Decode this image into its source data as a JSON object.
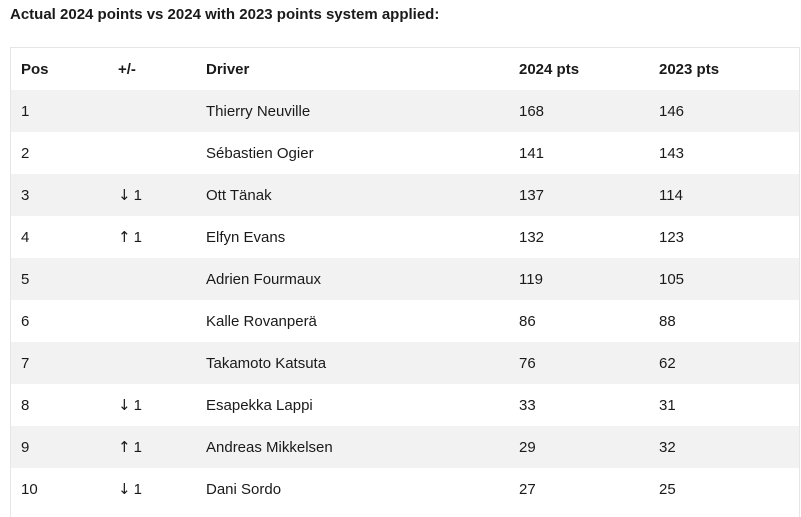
{
  "title": "Actual 2024 points vs 2024 with 2023 points system applied:",
  "table": {
    "headers": {
      "pos": "Pos",
      "change": "+/-",
      "driver": "Driver",
      "pts2024": "2024 pts",
      "pts2023": "2023 pts"
    },
    "rows": [
      {
        "pos": "1",
        "arrow": "",
        "change": "",
        "driver": "Thierry Neuville",
        "pts2024": "168",
        "pts2023": "146"
      },
      {
        "pos": "2",
        "arrow": "",
        "change": "",
        "driver": "Sébastien Ogier",
        "pts2024": "141",
        "pts2023": "143"
      },
      {
        "pos": "3",
        "arrow": "↓",
        "change": "1",
        "driver": "Ott Tänak",
        "pts2024": "137",
        "pts2023": "114"
      },
      {
        "pos": "4",
        "arrow": "↑",
        "change": "1",
        "driver": "Elfyn Evans",
        "pts2024": "132",
        "pts2023": "123"
      },
      {
        "pos": "5",
        "arrow": "",
        "change": "",
        "driver": "Adrien Fourmaux",
        "pts2024": "119",
        "pts2023": "105"
      },
      {
        "pos": "6",
        "arrow": "",
        "change": "",
        "driver": "Kalle Rovanperä",
        "pts2024": "86",
        "pts2023": "88"
      },
      {
        "pos": "7",
        "arrow": "",
        "change": "",
        "driver": "Takamoto Katsuta",
        "pts2024": "76",
        "pts2023": "62"
      },
      {
        "pos": "8",
        "arrow": "↓",
        "change": "1",
        "driver": "Esapekka Lappi",
        "pts2024": "33",
        "pts2023": "31"
      },
      {
        "pos": "9",
        "arrow": "↑",
        "change": "1",
        "driver": "Andreas Mikkelsen",
        "pts2024": "29",
        "pts2023": "32"
      },
      {
        "pos": "10",
        "arrow": "↓",
        "change": "1",
        "driver": "Dani Sordo",
        "pts2024": "27",
        "pts2023": "25"
      }
    ]
  },
  "colors": {
    "row_shade": "#f2f2f2",
    "row_plain": "#ffffff",
    "text": "#1a1a1a"
  }
}
